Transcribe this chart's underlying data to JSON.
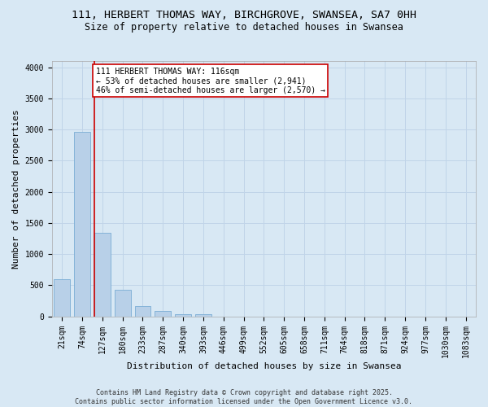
{
  "title_line1": "111, HERBERT THOMAS WAY, BIRCHGROVE, SWANSEA, SA7 0HH",
  "title_line2": "Size of property relative to detached houses in Swansea",
  "xlabel": "Distribution of detached houses by size in Swansea",
  "ylabel": "Number of detached properties",
  "categories": [
    "21sqm",
    "74sqm",
    "127sqm",
    "180sqm",
    "233sqm",
    "287sqm",
    "340sqm",
    "393sqm",
    "446sqm",
    "499sqm",
    "552sqm",
    "605sqm",
    "658sqm",
    "711sqm",
    "764sqm",
    "818sqm",
    "871sqm",
    "924sqm",
    "977sqm",
    "1030sqm",
    "1083sqm"
  ],
  "values": [
    590,
    2960,
    1345,
    430,
    165,
    85,
    40,
    40,
    0,
    0,
    0,
    0,
    0,
    0,
    0,
    0,
    0,
    0,
    0,
    0,
    0
  ],
  "bar_color": "#b8d0e8",
  "bar_edge_color": "#7aadd4",
  "vline_color": "#cc0000",
  "annotation_text": "111 HERBERT THOMAS WAY: 116sqm\n← 53% of detached houses are smaller (2,941)\n46% of semi-detached houses are larger (2,570) →",
  "annotation_box_color": "#ffffff",
  "annotation_box_edge_color": "#cc0000",
  "ylim": [
    0,
    4100
  ],
  "yticks": [
    0,
    500,
    1000,
    1500,
    2000,
    2500,
    3000,
    3500,
    4000
  ],
  "grid_color": "#c0d4e8",
  "background_color": "#d8e8f4",
  "plot_bg_color": "#d8e8f4",
  "footer_text": "Contains HM Land Registry data © Crown copyright and database right 2025.\nContains public sector information licensed under the Open Government Licence v3.0.",
  "title_fontsize": 9.5,
  "subtitle_fontsize": 8.5,
  "tick_fontsize": 7,
  "ylabel_fontsize": 8,
  "xlabel_fontsize": 8,
  "annotation_fontsize": 7,
  "footer_fontsize": 6
}
